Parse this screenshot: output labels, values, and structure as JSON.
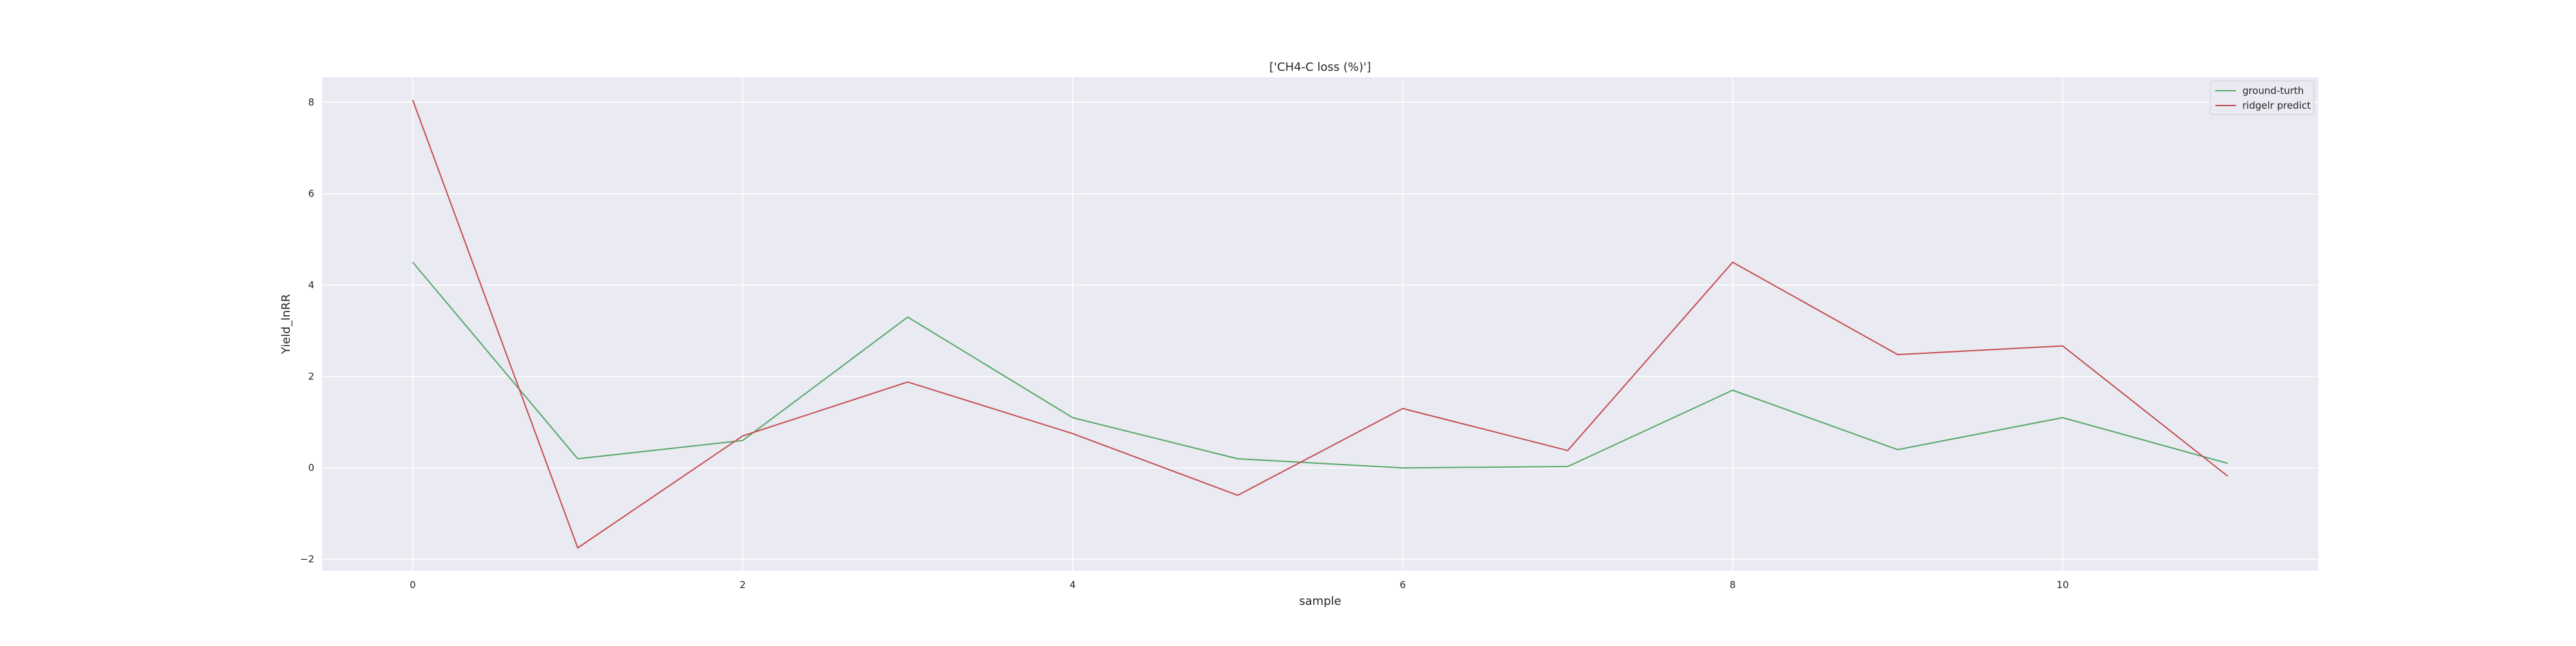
{
  "chart_data": {
    "type": "line",
    "title": "['CH4-C loss (%)']",
    "xlabel": "sample",
    "ylabel": "Yield_lnRR",
    "x": [
      0,
      1,
      2,
      3,
      4,
      5,
      6,
      7,
      8,
      9,
      10,
      11
    ],
    "xlim": [
      -0.55,
      11.55
    ],
    "ylim": [
      -2.25,
      8.55
    ],
    "x_ticks": [
      0,
      2,
      4,
      6,
      8,
      10
    ],
    "y_ticks": [
      -2,
      0,
      2,
      4,
      6,
      8
    ],
    "grid": true,
    "legend_position": "top-right",
    "series": [
      {
        "name": "ground-turth",
        "color": "#55a868",
        "values": [
          4.5,
          0.2,
          0.6,
          3.3,
          1.1,
          0.2,
          0.0,
          0.03,
          1.7,
          0.4,
          1.1,
          0.1
        ]
      },
      {
        "name": "ridgelr predict",
        "color": "#c44e52",
        "values": [
          8.05,
          -1.75,
          0.7,
          1.88,
          0.75,
          -0.6,
          1.3,
          0.38,
          4.5,
          2.48,
          2.67,
          -0.18
        ]
      }
    ]
  }
}
